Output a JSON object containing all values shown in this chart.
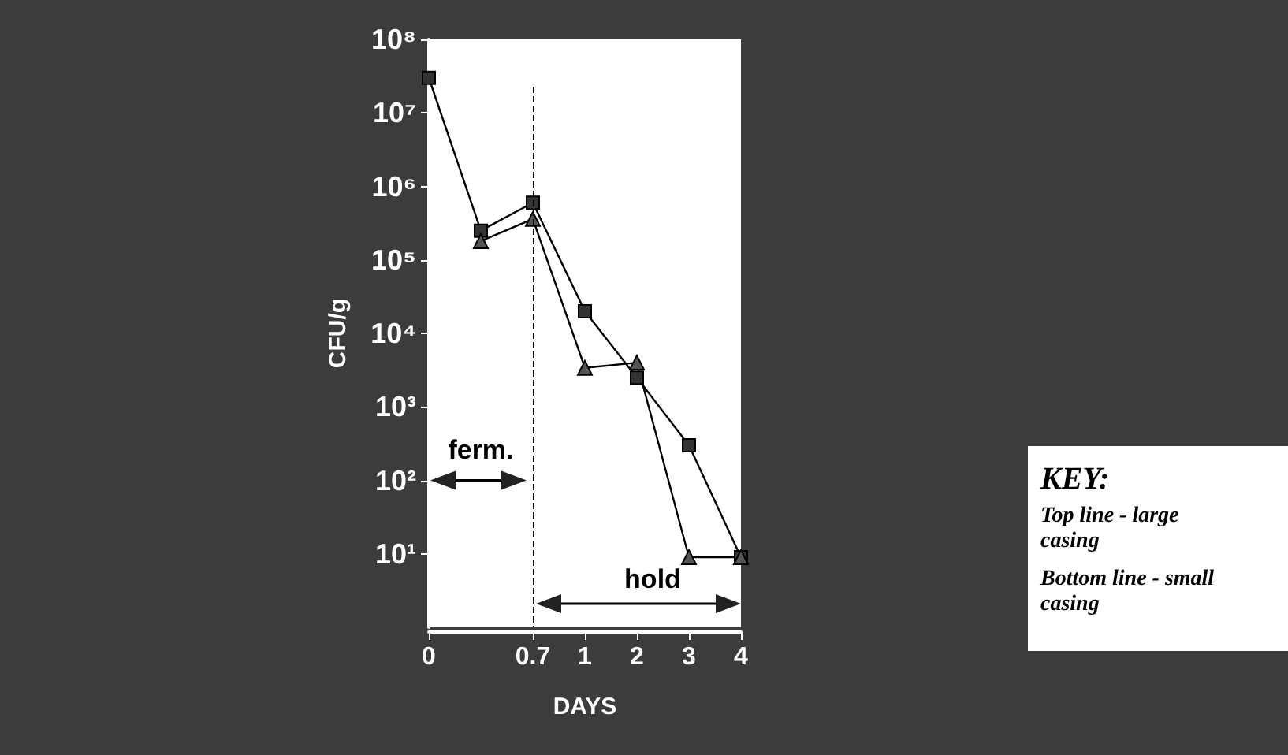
{
  "chart_data": {
    "type": "line",
    "xlabel": "DAYS",
    "ylabel": "CFU/g",
    "categories": [
      "0",
      null,
      "0.7",
      "1",
      "2",
      "3",
      "4"
    ],
    "series": [
      {
        "color": "#000000",
        "marker": "square",
        "values": [
          30000000,
          250000,
          600000,
          20000,
          2500,
          300,
          9
        ]
      },
      {
        "color": "#000000",
        "marker": "triangle",
        "values": [
          null,
          180000,
          360000,
          3400,
          4000,
          9,
          9
        ]
      }
    ],
    "log": "y",
    "ylim": [
      1,
      100000000
    ],
    "yticks": [
      {
        "value": 10,
        "label": "10¹"
      },
      {
        "value": 100,
        "label": "10²"
      },
      {
        "value": 1000,
        "label": "10³"
      },
      {
        "value": 10000,
        "label": "10⁴"
      },
      {
        "value": 100000,
        "label": "10⁵"
      },
      {
        "value": 1000000,
        "label": "10⁶"
      },
      {
        "value": 10000000,
        "label": "10⁷"
      },
      {
        "value": 100000000,
        "label": "10⁸"
      }
    ],
    "grid": false,
    "ref_lines": [
      {
        "axis": "x",
        "value": "0.7",
        "line_style": "dashed",
        "color": "#000000"
      }
    ],
    "annotations": [
      "ferm.",
      "hold",
      "KEY:",
      "Top line - large casing",
      "Bottom line - small casing"
    ]
  }
}
